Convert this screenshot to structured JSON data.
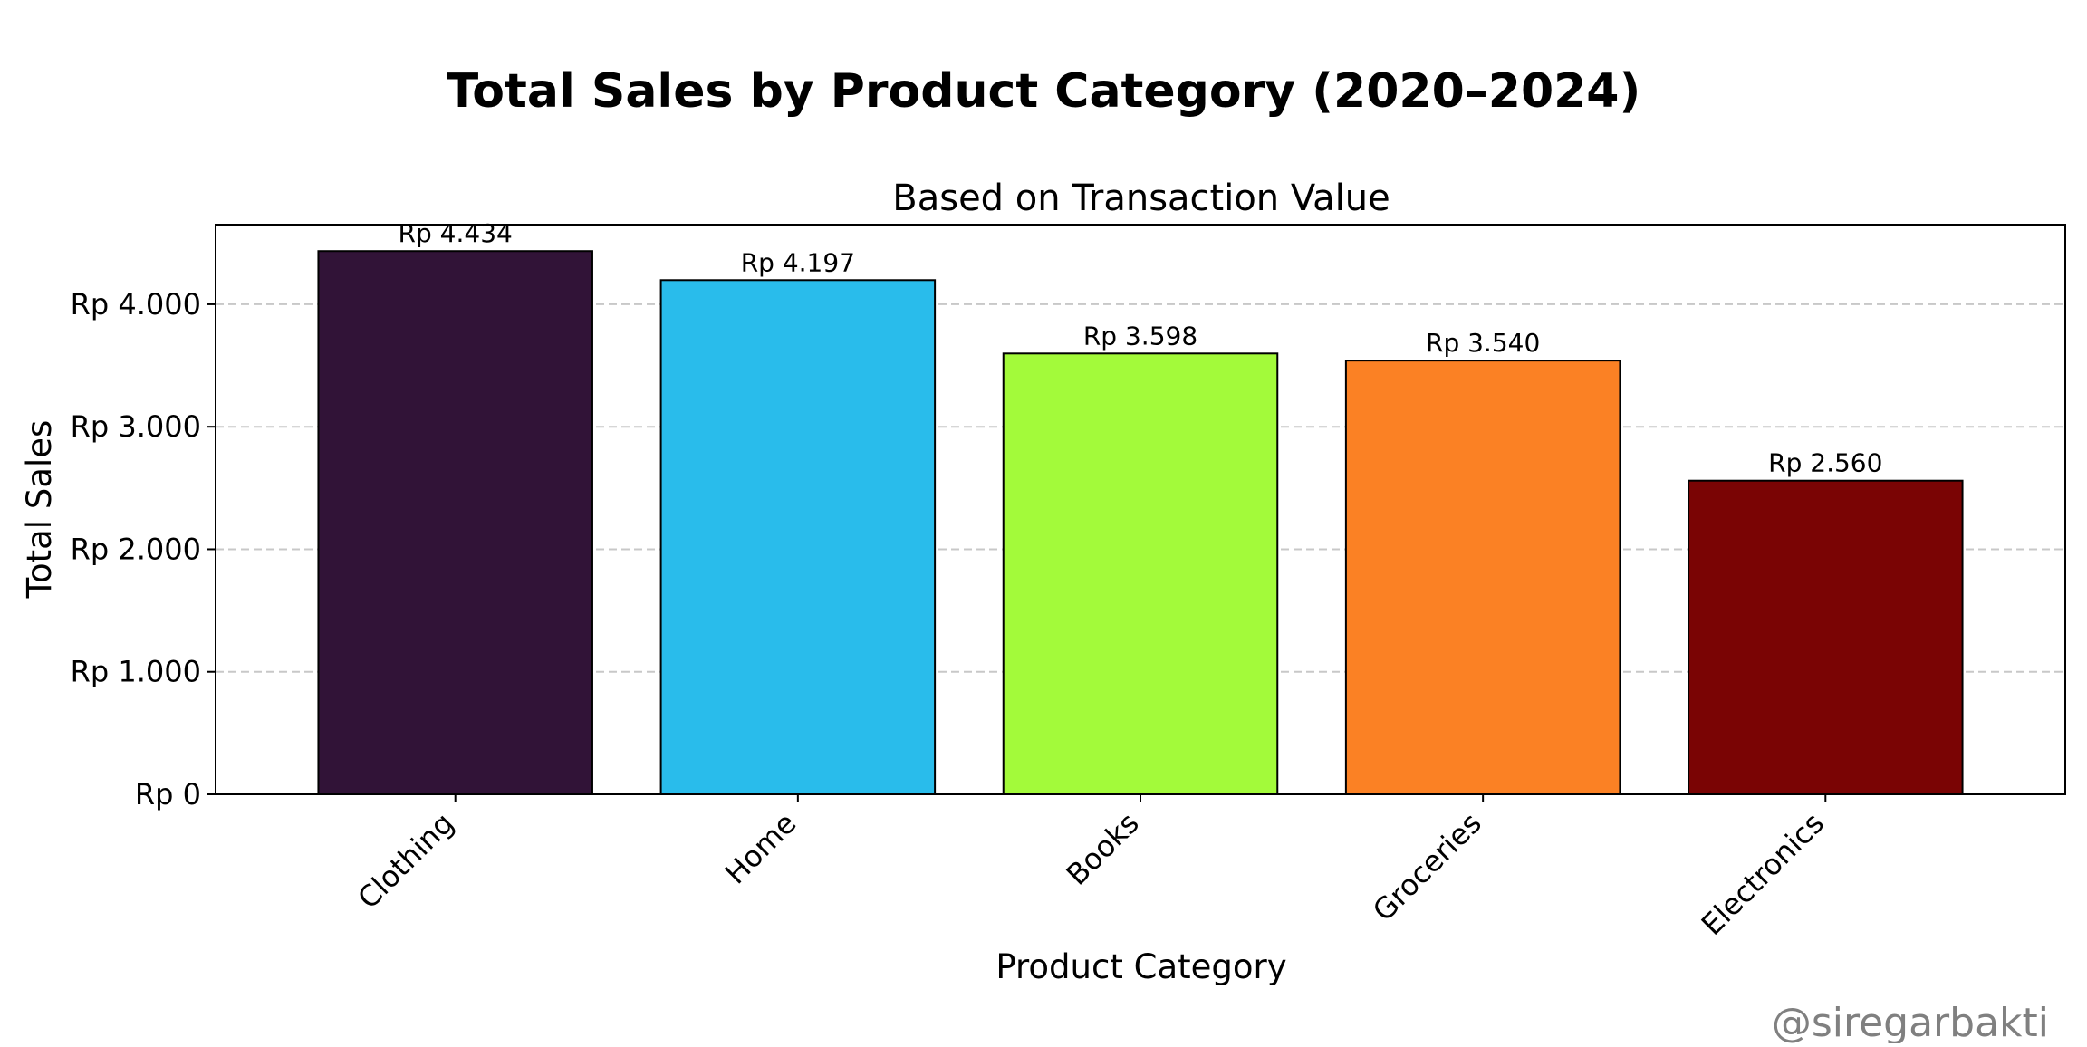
{
  "chart_data": {
    "type": "bar",
    "title": "Total Sales by Product Category (2020–2024)",
    "subtitle": "Based on Transaction Value",
    "xlabel": "Product Category",
    "ylabel": "Total Sales",
    "categories": [
      "Clothing",
      "Home",
      "Books",
      "Groceries",
      "Electronics"
    ],
    "values": [
      4434,
      4197,
      3598,
      3540,
      2560
    ],
    "value_labels": [
      "Rp 4.434",
      "Rp 4.197",
      "Rp 3.598",
      "Rp 3.540",
      "Rp 2.560"
    ],
    "colors": [
      "#311337",
      "#29bceb",
      "#a3fa3a",
      "#fb8124",
      "#7a0404"
    ],
    "yticks": [
      0,
      1000,
      2000,
      3000,
      4000
    ],
    "ytick_labels": [
      "Rp 0",
      "Rp 1.000",
      "Rp 2.000",
      "Rp 3.000",
      "Rp 4.000"
    ],
    "ylim": [
      0,
      4650
    ],
    "grid": "y-dashed",
    "legend": "none"
  },
  "watermark": "@siregarbakti"
}
